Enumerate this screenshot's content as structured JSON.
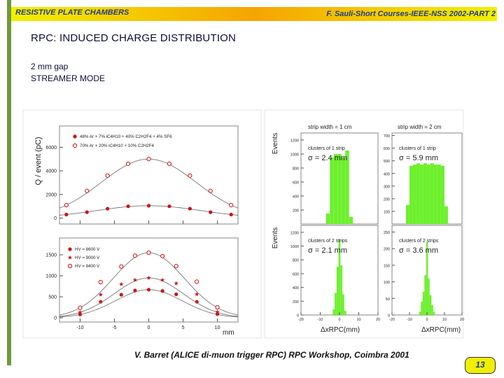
{
  "header": {
    "left": "RESISTIVE PLATE CHAMBERS",
    "right": "F. Sauli-Short Courses-IEEE-NSS 2002-PART 2"
  },
  "title": "RPC: INDUCED CHARGE DISTRIBUTION",
  "subtitle": {
    "line1": "2 mm gap",
    "line2": "STREAMER MODE"
  },
  "footer": "V. Barret (ALICE di-muon trigger RPC) RPC Workshop, Coimbra 2001",
  "page_number": "13",
  "colors": {
    "header_band": "#f6a400",
    "left_bar": "#6e9a3c",
    "histogram": "#6cf02c",
    "points": "#d01010"
  },
  "chart_data": [
    {
      "type": "scatter",
      "ylabel": "Q / event (pC)",
      "xlabel": "mm",
      "x_ticks": [
        "-10",
        "-5",
        "0",
        "5",
        "10"
      ],
      "upper": {
        "y_ticks": [
          "0",
          "2000",
          "4000",
          "6000"
        ],
        "ylim": [
          -500,
          7800
        ],
        "legend": [
          "48% Ar + 7% iC4H10 + 40% C2H2F4 + 4% SF6",
          "70% Ar + 20% iC4H10 + 10% C2H2F4"
        ],
        "series": [
          {
            "name": "48% Ar + 7% iC4H10 + 40% C2H2F4 + 4% SF6",
            "marker": "filled-circle",
            "x": [
              -12,
              -9,
              -6,
              -3,
              0,
              3,
              6,
              9,
              12
            ],
            "y": [
              300,
              500,
              800,
              1000,
              1050,
              1000,
              800,
              500,
              300
            ]
          },
          {
            "name": "70% Ar + 20% iC4H10 + 10% C2H2F4",
            "marker": "open-circle",
            "x": [
              -12,
              -9,
              -6,
              -3,
              0,
              3,
              6,
              9,
              12
            ],
            "y": [
              1100,
              2300,
              3600,
              4600,
              5000,
              4600,
              3600,
              2300,
              1100
            ]
          }
        ]
      },
      "lower": {
        "y_ticks": [
          "0",
          "500",
          "1000",
          "1500"
        ],
        "ylim": [
          -100,
          1900
        ],
        "legend": [
          "HV = 8600 V",
          "HV = 9000 V",
          "HV = 9400 V"
        ],
        "series": [
          {
            "name": "HV = 8600 V",
            "marker": "filled-circle",
            "x": [
              -10,
              -7,
              -4,
              -2,
              0,
              2,
              4,
              7,
              10
            ],
            "y": [
              80,
              380,
              550,
              650,
              670,
              640,
              560,
              380,
              90
            ]
          },
          {
            "name": "HV = 9000 V",
            "marker": "star",
            "x": [
              -10,
              -7,
              -4,
              -2,
              0,
              2,
              4,
              7,
              10
            ],
            "y": [
              130,
              550,
              800,
              900,
              950,
              900,
              820,
              560,
              140
            ]
          },
          {
            "name": "HV = 9400 V",
            "marker": "open-circle",
            "x": [
              -10,
              -7,
              -4,
              -2,
              0,
              2,
              4,
              7,
              10
            ],
            "y": [
              240,
              850,
              1220,
              1480,
              1550,
              1470,
              1230,
              860,
              250
            ]
          }
        ]
      }
    },
    {
      "type": "bar",
      "panels": [
        {
          "title": "strip width = 1 cm",
          "label": "clusters of 1 strip",
          "sigma": "σ = 2.4 mm",
          "y_ticks": [
            "200",
            "400",
            "600",
            "800",
            "1000",
            "1200"
          ],
          "ylim": [
            0,
            1300
          ],
          "xlim": [
            -20,
            20
          ],
          "bin_centers": [
            -6,
            -4,
            -2,
            0,
            2,
            4,
            6
          ],
          "values": [
            150,
            950,
            1000,
            1000,
            950,
            1050,
            100
          ]
        },
        {
          "title": "strip width = 2 cm",
          "label": "clusters of 1 strip",
          "sigma": "σ = 5.9 mm",
          "y_ticks": [
            "100",
            "200",
            "300",
            "400",
            "500",
            "600",
            "700"
          ],
          "ylim": [
            0,
            720
          ],
          "xlim": [
            -20,
            20
          ],
          "bin_centers": [
            -11,
            -9,
            -7,
            -5,
            -3,
            -1,
            1,
            3,
            5,
            7,
            9,
            11
          ],
          "values": [
            150,
            460,
            470,
            480,
            470,
            480,
            470,
            480,
            470,
            470,
            460,
            140
          ]
        },
        {
          "title": "",
          "label": "clusters of 2 strips",
          "sigma": "σ = 2.1 mm",
          "y_ticks": [
            "0",
            "200",
            "400",
            "600",
            "800",
            "1000",
            "1200"
          ],
          "ylim": [
            0,
            1300
          ],
          "xlim": [
            -20,
            20
          ],
          "bin_centers": [
            -3,
            -2,
            -1,
            0,
            1,
            2,
            3
          ],
          "values": [
            80,
            320,
            700,
            1100,
            720,
            300,
            60
          ]
        },
        {
          "title": "",
          "label": "clusters of 2 strips",
          "sigma": "σ = 3.6 mm",
          "y_ticks": [
            "0",
            "50",
            "100",
            "150",
            "200",
            "250"
          ],
          "ylim": [
            0,
            270
          ],
          "xlim": [
            -20,
            20
          ],
          "bin_centers": [
            -4,
            -3,
            -2,
            -1,
            0,
            1,
            2,
            3,
            4
          ],
          "values": [
            10,
            40,
            70,
            120,
            220,
            110,
            60,
            30,
            10
          ]
        }
      ],
      "ylabels": [
        "Events",
        "Events"
      ],
      "x_ticks": [
        "-20",
        "-10",
        "0",
        "10",
        "20"
      ],
      "xlabels": [
        "ΔxRPC(mm)",
        "ΔxRPC(mm)"
      ]
    }
  ]
}
